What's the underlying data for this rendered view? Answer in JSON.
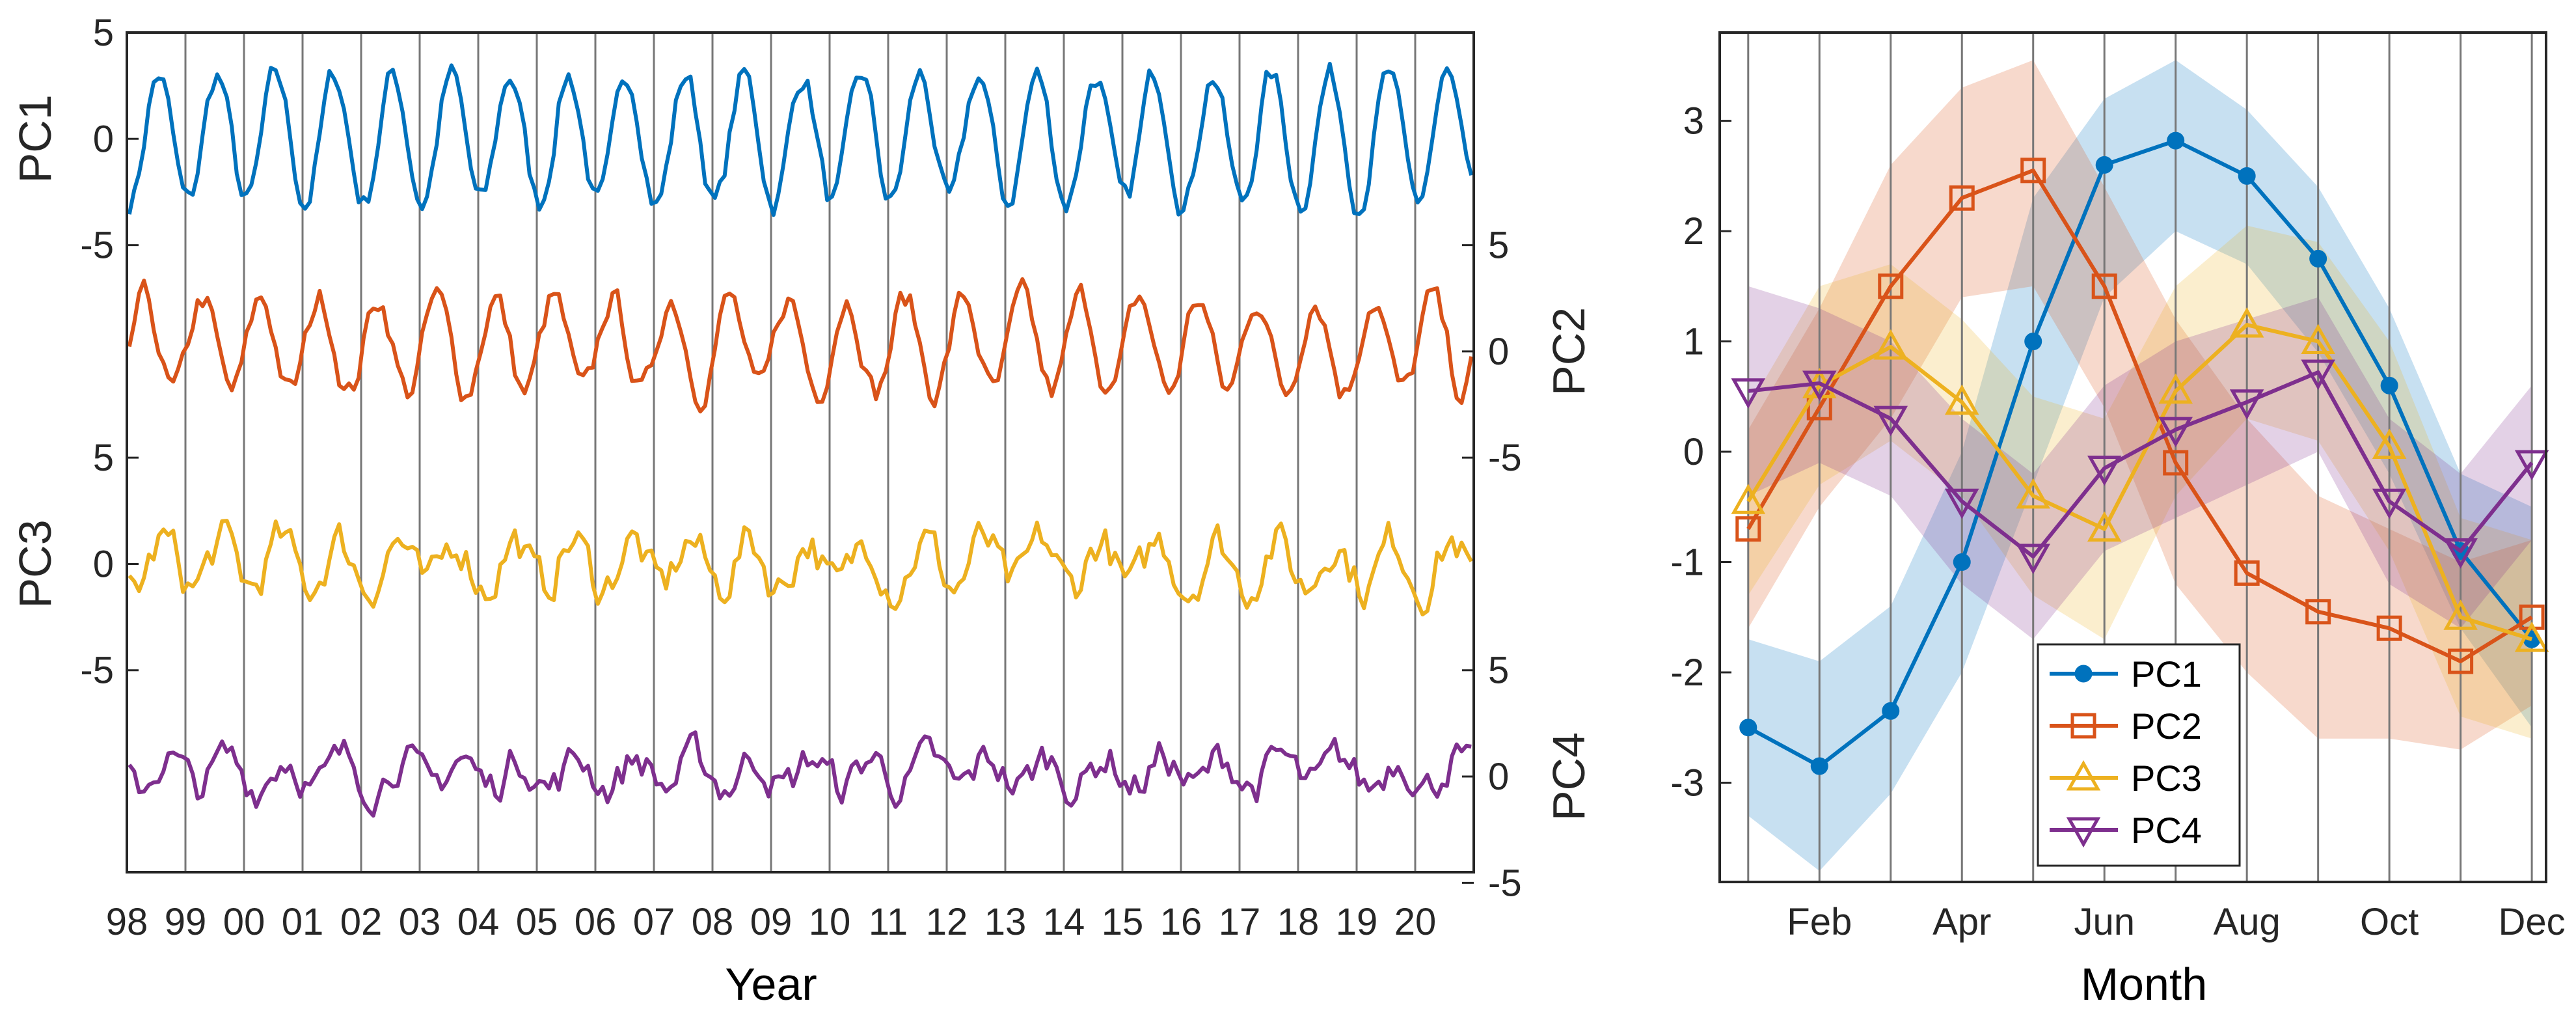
{
  "chart_data": [
    {
      "type": "line",
      "title": "",
      "xlabel": "Year",
      "x_tick_labels": [
        "98",
        "99",
        "00",
        "01",
        "02",
        "03",
        "04",
        "05",
        "06",
        "07",
        "08",
        "09",
        "10",
        "11",
        "12",
        "13",
        "14",
        "15",
        "16",
        "17",
        "18",
        "19",
        "20"
      ],
      "x_range_years": [
        1998,
        2021
      ],
      "series": [
        {
          "name": "PC1",
          "color": "#0072BD",
          "axis": "left",
          "ylabel": "PC1",
          "ticks": [
            "5",
            "0",
            "-5"
          ],
          "baseline_offset": 0,
          "seasonal_amplitude": 3.0,
          "peak_month": 7,
          "mean": 0.0,
          "noise": 0.55
        },
        {
          "name": "PC2",
          "color": "#D95319",
          "axis": "right",
          "ylabel": "PC2",
          "ticks": [
            "5",
            "0",
            "-5"
          ],
          "baseline_offset": -10,
          "seasonal_amplitude": 2.2,
          "peak_month": 4,
          "mean": 0.3,
          "noise": 0.6
        },
        {
          "name": "PC3",
          "color": "#EDB120",
          "axis": "left",
          "ylabel": "PC3",
          "ticks": [
            "5",
            "0",
            "-5"
          ],
          "baseline_offset": -20,
          "seasonal_amplitude": 1.1,
          "peak_month": 8,
          "mean": 0.0,
          "noise": 0.9
        },
        {
          "name": "PC4",
          "color": "#7E2F8E",
          "axis": "right",
          "ylabel": "PC4",
          "ticks": [
            "5",
            "0",
            "-5"
          ],
          "baseline_offset": -30,
          "seasonal_amplitude": 0.7,
          "peak_month": 9,
          "mean": 0.2,
          "noise": 0.8
        }
      ],
      "ylim": [
        -34.5,
        5
      ]
    },
    {
      "type": "line",
      "title": "",
      "xlabel": "Month",
      "x_tick_labels": [
        "Feb",
        "Apr",
        "Jun",
        "Aug",
        "Oct",
        "Dec"
      ],
      "x_tick_positions": [
        2,
        4,
        6,
        8,
        10,
        12
      ],
      "xlim": [
        0.6,
        12.2
      ],
      "y_tick_labels": [
        "3",
        "2",
        "1",
        "0",
        "-1",
        "-2",
        "-3"
      ],
      "y_tick_values": [
        3,
        2,
        1,
        0,
        -1,
        -2,
        -3
      ],
      "ylim": [
        -3.9,
        3.8
      ],
      "x": [
        1,
        2,
        3,
        4,
        5,
        6,
        7,
        8,
        9,
        10,
        11,
        12
      ],
      "legend": {
        "placement": "bottom-center",
        "entries": [
          "PC1",
          "PC2",
          "PC3",
          "PC4"
        ]
      },
      "series": [
        {
          "name": "PC1",
          "color": "#0072BD",
          "marker": "circle",
          "values": [
            -2.5,
            -2.85,
            -2.35,
            -1.0,
            1.0,
            2.6,
            2.82,
            2.5,
            1.75,
            0.6,
            -0.9,
            -1.7
          ],
          "band_upper": [
            -1.7,
            -1.9,
            -1.4,
            0.0,
            2.3,
            3.2,
            3.55,
            3.1,
            2.4,
            1.3,
            -0.2,
            -0.5
          ],
          "band_lower": [
            -3.3,
            -3.8,
            -3.1,
            -2.0,
            -0.3,
            1.4,
            2.0,
            1.7,
            0.9,
            -0.2,
            -1.6,
            -2.5
          ]
        },
        {
          "name": "PC2",
          "color": "#D95319",
          "marker": "square",
          "values": [
            -0.7,
            0.4,
            1.5,
            2.3,
            2.55,
            1.5,
            -0.1,
            -1.1,
            -1.45,
            -1.6,
            -1.9,
            -1.5
          ],
          "band_upper": [
            0.2,
            1.3,
            2.6,
            3.3,
            3.55,
            2.4,
            1.2,
            0.3,
            -0.4,
            -0.7,
            -1.0,
            -0.8
          ],
          "band_lower": [
            -1.6,
            -0.5,
            0.3,
            1.4,
            1.5,
            0.4,
            -1.2,
            -2.0,
            -2.6,
            -2.6,
            -2.7,
            -2.3
          ]
        },
        {
          "name": "PC3",
          "color": "#EDB120",
          "marker": "triangle-up",
          "values": [
            -0.45,
            0.6,
            0.95,
            0.45,
            -0.4,
            -0.7,
            0.55,
            1.15,
            1.0,
            0.05,
            -1.5,
            -1.7
          ],
          "band_upper": [
            0.4,
            1.5,
            1.7,
            1.2,
            0.5,
            0.3,
            1.5,
            2.05,
            1.9,
            1.0,
            -0.6,
            -0.8
          ],
          "band_lower": [
            -1.3,
            -0.3,
            0.1,
            -0.4,
            -1.3,
            -1.7,
            -0.4,
            0.3,
            0.1,
            -0.9,
            -2.4,
            -2.6
          ]
        },
        {
          "name": "PC4",
          "color": "#7E2F8E",
          "marker": "triangle-down",
          "values": [
            0.55,
            0.62,
            0.3,
            -0.45,
            -0.95,
            -0.15,
            0.2,
            0.45,
            0.72,
            -0.45,
            -0.9,
            -0.1
          ],
          "band_upper": [
            1.5,
            1.3,
            1.0,
            0.3,
            -0.2,
            0.6,
            1.0,
            1.2,
            1.4,
            0.3,
            -0.2,
            0.6
          ],
          "band_lower": [
            -0.4,
            -0.1,
            -0.4,
            -1.2,
            -1.7,
            -0.9,
            -0.6,
            -0.3,
            0.0,
            -1.2,
            -1.6,
            -0.8
          ]
        }
      ]
    }
  ]
}
